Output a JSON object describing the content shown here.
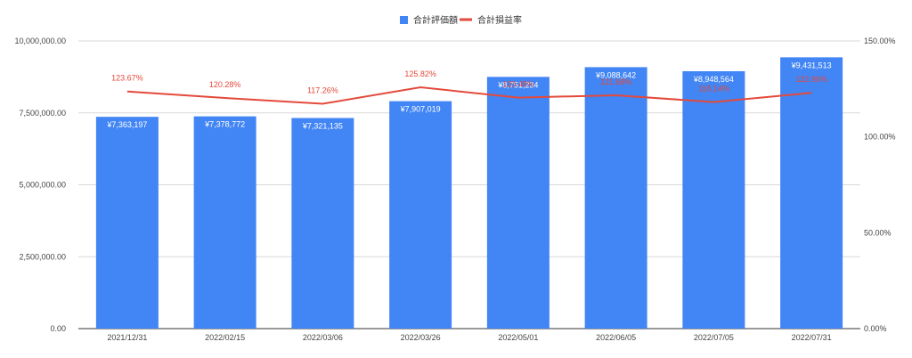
{
  "chart_data": {
    "type": "bar+line",
    "categories": [
      "2021/12/31",
      "2022/02/15",
      "2022/03/06",
      "2022/03/26",
      "2022/05/01",
      "2022/06/05",
      "2022/07/05",
      "2022/07/31"
    ],
    "series": [
      {
        "name": "合計評価額",
        "type": "bar",
        "axis": "left",
        "color": "#4285f4",
        "values": [
          7363197,
          7378772,
          7321135,
          7907019,
          8751234,
          9088642,
          8948564,
          9431513
        ],
        "labels": [
          "¥7,363,197",
          "¥7,378,772",
          "¥7,321,135",
          "¥7,907,019",
          "¥8,751,234",
          "¥9,088,642",
          "¥8,948,564",
          "¥9,431,513"
        ]
      },
      {
        "name": "合計損益率",
        "type": "line",
        "axis": "right",
        "color": "#e34a3b",
        "values": [
          123.67,
          120.28,
          117.26,
          125.82,
          120.48,
          121.68,
          118.14,
          122.96
        ],
        "labels": [
          "123.67%",
          "120.28%",
          "117.26%",
          "125.82%",
          "120.48%",
          "121.68%",
          "118.14%",
          "122.96%"
        ]
      }
    ],
    "y_left": {
      "ylim": [
        0,
        10000000
      ],
      "ticks": [
        0,
        2500000,
        5000000,
        7500000,
        10000000
      ],
      "tick_labels": [
        "0.00",
        "2,500,000.00",
        "5,000,000.00",
        "7,500,000.00",
        "10,000,000.00"
      ]
    },
    "y_right": {
      "ylim": [
        0,
        150
      ],
      "ticks": [
        0,
        50,
        100,
        150
      ],
      "tick_labels": [
        "0.00%",
        "50.00%",
        "100.00%",
        "150.00%"
      ]
    },
    "grid": true,
    "legend_position": "top-center"
  }
}
